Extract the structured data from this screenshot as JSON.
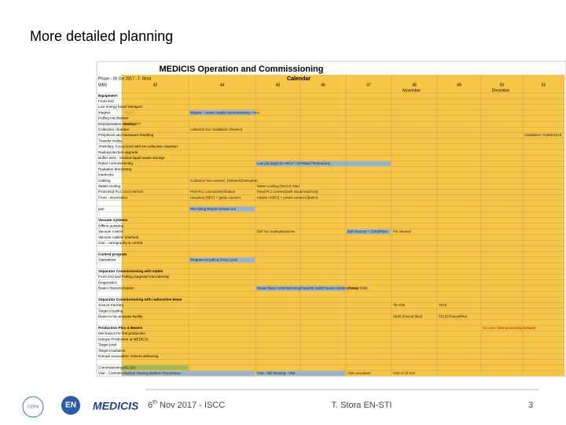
{
  "slide": {
    "title": "More detailed planning"
  },
  "table": {
    "title": "MEDICIS Operation and Commissioning",
    "calendar": "Calendar",
    "phase": "Phase - 06 Oct 2017 - T. Stora",
    "wbs": "WBS",
    "weeks": [
      "42",
      "44",
      "45",
      "46",
      "47",
      "48",
      "49",
      "50",
      "51"
    ],
    "months": [
      "November",
      "December"
    ],
    "rows": [
      {
        "label": "Equipment:",
        "bold": true
      },
      {
        "label": "Front end"
      },
      {
        "label": "Low energy beam transport"
      },
      {
        "label": "Magnet",
        "bars": [
          {
            "text": "7/11/17",
            "color": "none"
          },
          {
            "text": "Magnet + power supply commissioning + test",
            "color": "#8db3e2"
          }
        ]
      },
      {
        "label": "Pulling mechanism"
      },
      {
        "label": "Depolarisation chamber",
        "bars": [
          {
            "text": "Sealing 7/7",
            "color": "none"
          }
        ]
      },
      {
        "label": "Collection chamber",
        "bars": [
          {
            "text": "collection box installation (Sieben)",
            "color": "none"
          }
        ]
      },
      {
        "label": "Peripheral and backward shielding",
        "bars": [
          {
            "text": "Installation 7Cable/2018",
            "color": "none"
          }
        ]
      },
      {
        "label": "Transfer trolley"
      },
      {
        "label": "Shielding: Focus level with ion collection chamber"
      },
      {
        "label": "Radioprotection upgrade"
      },
      {
        "label": "Buffer area - medical liquid waste storage"
      },
      {
        "label": "Robot commissioning",
        "bars": [
          {
            "text": "Low (16 days) for HECT / ICP/Mod/ Technicians",
            "color": "#8db3e2"
          }
        ]
      },
      {
        "label": "Radiation Monitoring"
      },
      {
        "label": "Interlocks"
      },
      {
        "label": "Cabling",
        "bars": [
          {
            "text": "Collection box connect. (Sieben/Christophe)",
            "color": "none"
          }
        ]
      },
      {
        "label": "Water-cooling",
        "bars": [
          {
            "text": "Water-cooling (Dorrer) Start",
            "color": "none"
          }
        ]
      },
      {
        "label": "Front End PLC",
        "bars": [
          {
            "text": "End Interlock",
            "color": "none"
          },
          {
            "text": "Pick PLC connect/Verification",
            "color": "none"
          },
          {
            "text": "Feed PLC connect(with visual lead/Ack)",
            "color": "none"
          }
        ]
      },
      {
        "label": "Front - electronics",
        "bars": [
          {
            "text": "reception (NEC) + guide connect.",
            "color": "none"
          },
          {
            "text": "rotation (NEG) + power connect.(Bader)",
            "color": "none"
          }
        ]
      },
      {
        "label": ""
      },
      {
        "label": "pas",
        "bars": [
          {
            "text": "PEt Viking Report Version 2.0",
            "color": "#8db3e2"
          }
        ]
      },
      {
        "label": ""
      },
      {
        "label": "Vacuum systems",
        "bold": true
      },
      {
        "label": "Offline pumping"
      },
      {
        "label": "Vacuum control",
        "bars": [
          {
            "text": "Bell Vac testing/sessions",
            "color": "none"
          },
          {
            "text": "Bell Vacuum + (Shell/Pan)",
            "color": "#8db3e2"
          },
          {
            "text": "Pin channel",
            "color": "none"
          }
        ]
      },
      {
        "label": "Vacuum cables/ Interlock"
      },
      {
        "label": "Gas - cartography & control"
      },
      {
        "label": ""
      },
      {
        "label": "Control program",
        "bold": true
      },
      {
        "label": "Operations",
        "bars": [
          {
            "text": "Program on path & Entry Level",
            "color": "#8db3e2"
          }
        ]
      },
      {
        "label": ""
      },
      {
        "label": "Separator Commissioning with stable",
        "bold": true
      },
      {
        "label": "Front end and Pulling magnets/ low intensity"
      },
      {
        "label": "Diagnostics"
      },
      {
        "label": "Beam characterization",
        "bars": [
          {
            "text": "Beam/ Basic commissioning/Parasitic stable beam commissioning",
            "color": "#8db3e2"
          },
          {
            "text": "(Pascal Bilal)",
            "color": "none"
          }
        ]
      },
      {
        "label": ""
      },
      {
        "label": "Separator Commissioning with radioactive beam",
        "bold": true
      },
      {
        "label": "Source tracking",
        "bars": [
          {
            "text": "Tb-VD5",
            "color": "none"
          },
          {
            "text": "Tb76",
            "color": "none"
          }
        ]
      },
      {
        "label": "Target coupling"
      },
      {
        "label": "Beam to bio analysis facility",
        "bars": [
          {
            "text": "Sb46 (Pascal Bilal)",
            "color": "none"
          },
          {
            "text": "Tb155/Pascal/Rick",
            "color": "none"
          }
        ]
      },
      {
        "label": ""
      },
      {
        "label": "Production Plus & Beams",
        "bold": true,
        "bars": [
          {
            "text": "Go Live / start processing isotopes",
            "color": "none"
          }
        ]
      },
      {
        "label": "Mechanics for first production"
      },
      {
        "label": "Isotope Production at MEDICIS"
      },
      {
        "label": "Target prod"
      },
      {
        "label": "Target Irradiation"
      },
      {
        "label": "Isotope evacuation: solvent delivering"
      },
      {
        "label": ""
      },
      {
        "label": "Commissioning",
        "bars": [
          {
            "text": "ISC-DIS",
            "color": "#9bbb59"
          },
          {
            "text": "Medicis Viewing platform Procedures",
            "color": "#8db3e2"
          }
        ]
      },
      {
        "label": "Visit - Committee M",
        "bars": [
          {
            "text": "Visit - 3M/ Meeting - Visit",
            "color": "#8db3e2"
          },
          {
            "text": "Visit consultant",
            "color": "none"
          },
          {
            "text": "Visit of 25 Nov",
            "color": "none"
          }
        ]
      }
    ]
  },
  "footer": {
    "date_num": "6",
    "date_sup": "th",
    "date_rest": " Nov 2017 - ISCC",
    "author": "T. Stora EN-STI",
    "page": "3",
    "logo_en": "EN",
    "logo_medicis": "MEDICIS",
    "logo_cern": "CERN"
  }
}
